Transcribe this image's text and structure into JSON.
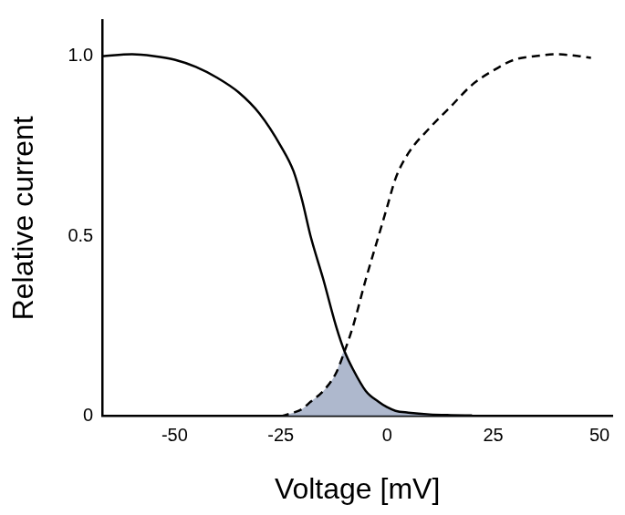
{
  "chart_data": {
    "type": "line",
    "x_label": "Voltage [mV]",
    "y_label": "Relative current",
    "x": [
      -67,
      -60,
      -55,
      -50,
      -45,
      -40,
      -35,
      -30,
      -25,
      -22,
      -20,
      -18,
      -15,
      -12,
      -10,
      -8,
      -5,
      -2,
      0,
      2,
      5,
      10,
      15,
      20,
      25,
      30,
      35,
      40,
      45,
      48
    ],
    "series": [
      {
        "color": "#000000",
        "line_style": "solid",
        "values": [
          1.0,
          1.005,
          1.0,
          0.99,
          0.97,
          0.94,
          0.9,
          0.84,
          0.75,
          0.68,
          0.6,
          0.5,
          0.38,
          0.25,
          0.18,
          0.13,
          0.07,
          0.04,
          0.025,
          0.015,
          0.01,
          0.005,
          0.003,
          0.002,
          null,
          null,
          null,
          null,
          null,
          null
        ]
      },
      {
        "color": "#000000",
        "line_style": "dashed",
        "values": [
          null,
          null,
          null,
          null,
          null,
          null,
          null,
          null,
          0.0,
          0.01,
          0.02,
          0.04,
          0.07,
          0.12,
          0.18,
          0.25,
          0.38,
          0.5,
          0.58,
          0.66,
          0.73,
          0.8,
          0.86,
          0.92,
          0.96,
          0.99,
          1.0,
          1.005,
          1.0,
          0.995
        ]
      }
    ],
    "xlim": [
      -67,
      53
    ],
    "xticks": [
      -50,
      -25,
      0,
      25,
      50
    ],
    "ylim": [
      0,
      1.1
    ],
    "yticks": [
      0,
      0.5,
      {
        "value": 1,
        "label": "1.0"
      }
    ],
    "grid": false
  }
}
